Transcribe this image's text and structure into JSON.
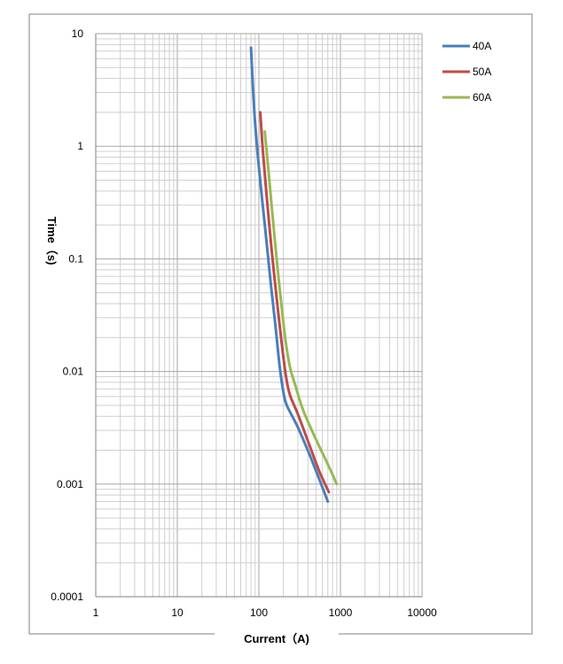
{
  "chart_data": {
    "type": "line",
    "xlabel": "Current（A)",
    "ylabel": "Time（s)",
    "x_scale": "log",
    "y_scale": "log",
    "xlim": [
      1,
      10000
    ],
    "ylim": [
      0.0001,
      10
    ],
    "x_ticks": [
      "1",
      "10",
      "100",
      "1000",
      "10000"
    ],
    "y_ticks": [
      "10",
      "1",
      "0.1",
      "0.01",
      "0.001",
      "0.0001"
    ],
    "grid": true,
    "legend_position": "top-right",
    "series": [
      {
        "name": "40A",
        "color": "#4a7ebb",
        "points": [
          [
            80,
            7.5
          ],
          [
            88,
            2.0
          ],
          [
            100,
            0.65
          ],
          [
            120,
            0.18
          ],
          [
            140,
            0.06
          ],
          [
            160,
            0.025
          ],
          [
            180,
            0.011
          ],
          [
            200,
            0.0065
          ],
          [
            220,
            0.005
          ],
          [
            300,
            0.0032
          ],
          [
            450,
            0.0016
          ],
          [
            700,
            0.0007
          ]
        ]
      },
      {
        "name": "50A",
        "color": "#be4b48",
        "points": [
          [
            104,
            2.0
          ],
          [
            112,
            0.9
          ],
          [
            125,
            0.35
          ],
          [
            145,
            0.11
          ],
          [
            165,
            0.045
          ],
          [
            190,
            0.018
          ],
          [
            215,
            0.009
          ],
          [
            240,
            0.0062
          ],
          [
            300,
            0.0042
          ],
          [
            400,
            0.0024
          ],
          [
            550,
            0.0013
          ],
          [
            720,
            0.00085
          ]
        ]
      },
      {
        "name": "60A",
        "color": "#98b954",
        "points": [
          [
            118,
            1.35
          ],
          [
            130,
            0.65
          ],
          [
            145,
            0.27
          ],
          [
            165,
            0.1
          ],
          [
            185,
            0.045
          ],
          [
            210,
            0.02
          ],
          [
            240,
            0.011
          ],
          [
            280,
            0.0075
          ],
          [
            350,
            0.0045
          ],
          [
            500,
            0.0025
          ],
          [
            700,
            0.0015
          ],
          [
            900,
            0.001
          ]
        ]
      }
    ]
  }
}
